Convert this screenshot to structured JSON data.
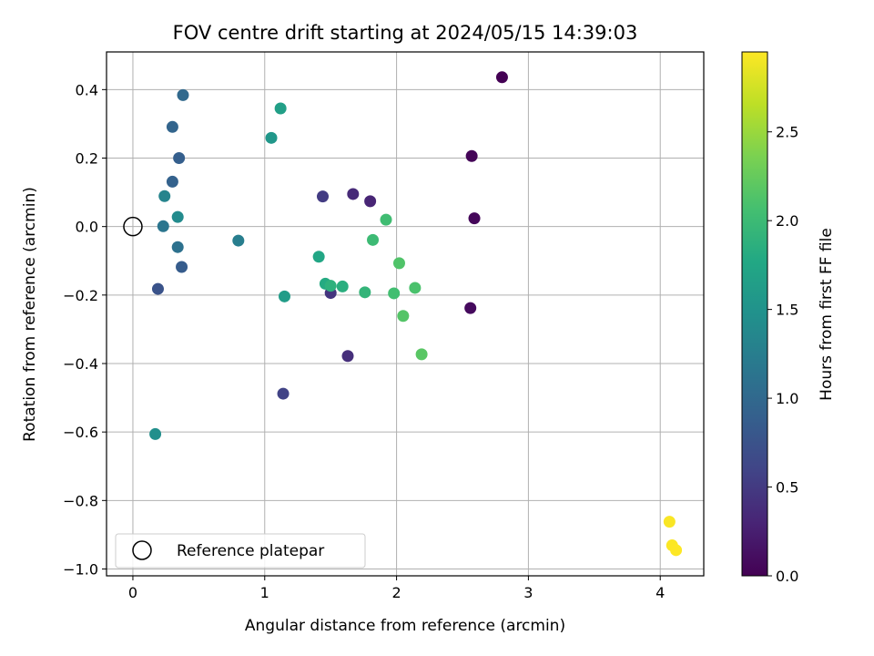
{
  "chart_data": {
    "type": "scatter",
    "title": "FOV centre drift starting at 2024/05/15 14:39:03",
    "xlabel": "Angular distance from reference (arcmin)",
    "ylabel": "Rotation from reference (arcmin)",
    "xlim": [
      -0.2,
      4.33
    ],
    "ylim": [
      -1.02,
      0.51
    ],
    "xticks": [
      0,
      1,
      2,
      3,
      4
    ],
    "xtick_labels": [
      "0",
      "1",
      "2",
      "3",
      "4"
    ],
    "yticks": [
      -1.0,
      -0.8,
      -0.6,
      -0.4,
      -0.2,
      0.0,
      0.2,
      0.4
    ],
    "ytick_labels": [
      "−1.0",
      "−0.8",
      "−0.6",
      "−0.4",
      "−0.2",
      "0.0",
      "0.2",
      "0.4"
    ],
    "grid": true,
    "colormap": "viridis",
    "colorbar": {
      "label": "Hours from first FF file",
      "range": [
        0,
        2.95
      ],
      "ticks": [
        0.0,
        0.5,
        1.0,
        1.5,
        2.0,
        2.5
      ],
      "tick_labels": [
        "0.0",
        "0.5",
        "1.0",
        "1.5",
        "2.0",
        "2.5"
      ]
    },
    "legend": {
      "position": "lower-left",
      "entries": [
        {
          "label": "Reference platepar",
          "marker": "open-circle",
          "color": "#000000"
        }
      ]
    },
    "reference_point": {
      "x": 0.0,
      "y": 0.0
    },
    "points": [
      {
        "x": 2.8,
        "y": 0.436,
        "hours": 0.0
      },
      {
        "x": 2.57,
        "y": 0.206,
        "hours": 0.03
      },
      {
        "x": 2.59,
        "y": 0.024,
        "hours": 0.05
      },
      {
        "x": 2.56,
        "y": -0.238,
        "hours": 0.08
      },
      {
        "x": 1.8,
        "y": 0.074,
        "hours": 0.3
      },
      {
        "x": 1.67,
        "y": 0.095,
        "hours": 0.35
      },
      {
        "x": 1.63,
        "y": -0.378,
        "hours": 0.4
      },
      {
        "x": 1.5,
        "y": -0.194,
        "hours": 0.45
      },
      {
        "x": 1.44,
        "y": 0.088,
        "hours": 0.52
      },
      {
        "x": 1.14,
        "y": -0.488,
        "hours": 0.58
      },
      {
        "x": 0.19,
        "y": -0.182,
        "hours": 0.75
      },
      {
        "x": 0.37,
        "y": -0.118,
        "hours": 0.85
      },
      {
        "x": 0.35,
        "y": 0.2,
        "hours": 0.88
      },
      {
        "x": 0.3,
        "y": 0.131,
        "hours": 0.92
      },
      {
        "x": 0.3,
        "y": 0.291,
        "hours": 0.95
      },
      {
        "x": 0.38,
        "y": 0.384,
        "hours": 1.0
      },
      {
        "x": 0.34,
        "y": -0.06,
        "hours": 1.1
      },
      {
        "x": 0.23,
        "y": 0.001,
        "hours": 1.15
      },
      {
        "x": 0.8,
        "y": -0.041,
        "hours": 1.25
      },
      {
        "x": 0.24,
        "y": 0.089,
        "hours": 1.32
      },
      {
        "x": 0.34,
        "y": 0.028,
        "hours": 1.4
      },
      {
        "x": 0.17,
        "y": -0.606,
        "hours": 1.45
      },
      {
        "x": 1.05,
        "y": 0.259,
        "hours": 1.55
      },
      {
        "x": 1.15,
        "y": -0.204,
        "hours": 1.62
      },
      {
        "x": 1.12,
        "y": 0.345,
        "hours": 1.65
      },
      {
        "x": 1.41,
        "y": -0.088,
        "hours": 1.75
      },
      {
        "x": 1.46,
        "y": -0.167,
        "hours": 1.8
      },
      {
        "x": 1.59,
        "y": -0.175,
        "hours": 1.85
      },
      {
        "x": 1.5,
        "y": -0.173,
        "hours": 1.88
      },
      {
        "x": 1.76,
        "y": -0.192,
        "hours": 1.93
      },
      {
        "x": 1.82,
        "y": -0.039,
        "hours": 2.0
      },
      {
        "x": 1.92,
        "y": 0.02,
        "hours": 2.03
      },
      {
        "x": 1.98,
        "y": -0.195,
        "hours": 2.05
      },
      {
        "x": 2.14,
        "y": -0.179,
        "hours": 2.1
      },
      {
        "x": 2.02,
        "y": -0.107,
        "hours": 2.13
      },
      {
        "x": 2.05,
        "y": -0.261,
        "hours": 2.15
      },
      {
        "x": 2.19,
        "y": -0.373,
        "hours": 2.18
      },
      {
        "x": 4.07,
        "y": -0.862,
        "hours": 2.93
      },
      {
        "x": 4.09,
        "y": -0.931,
        "hours": 2.94
      },
      {
        "x": 4.12,
        "y": -0.945,
        "hours": 2.95
      }
    ]
  }
}
